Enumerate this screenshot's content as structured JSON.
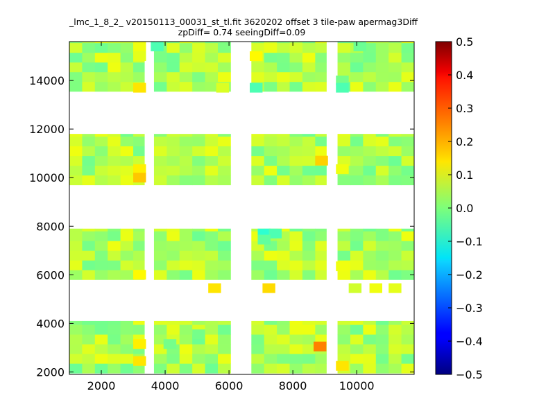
{
  "chart_data": {
    "type": "heatmap",
    "title": "_lmc_1_8_2_ v20150113_00031_st_tl.fit 3620202 offset 3 tile-paw apermag3Diff",
    "subtitle": "zpDiff= 0.74 seeingDiff=0.09",
    "xlabel": "",
    "ylabel": "",
    "xlim": [
      1000,
      11800
    ],
    "ylim": [
      1900,
      15600
    ],
    "x_ticks": [
      2000,
      4000,
      6000,
      8000,
      10000
    ],
    "y_ticks": [
      2000,
      4000,
      6000,
      8000,
      10000,
      12000,
      14000
    ],
    "colorbar": {
      "colormap": "jet",
      "range": [
        -0.5,
        0.5
      ],
      "ticks": [
        "0.5",
        "0.4",
        "0.3",
        "0.2",
        "0.1",
        "0.0",
        "−0.1",
        "−0.2",
        "−0.3",
        "−0.4",
        "−0.5"
      ]
    },
    "grid": false,
    "detector_columns_x": [
      [
        1000,
        3350
      ],
      [
        3650,
        6050
      ],
      [
        6700,
        9050
      ],
      [
        9400,
        11800
      ]
    ],
    "detector_rows_y": [
      [
        1950,
        4100
      ],
      [
        5800,
        7900
      ],
      [
        9700,
        11800
      ],
      [
        13550,
        15600
      ]
    ],
    "cell_size": 400,
    "background_value": 0.04,
    "notable_cells": [
      {
        "x": 3200,
        "y": 15400,
        "value": 0.11
      },
      {
        "x": 3200,
        "y": 15000,
        "value": 0.1
      },
      {
        "x": 3200,
        "y": 13700,
        "value": 0.15
      },
      {
        "x": 3750,
        "y": 15400,
        "value": -0.05
      },
      {
        "x": 5800,
        "y": 13700,
        "value": 0.09
      },
      {
        "x": 6850,
        "y": 15000,
        "value": 0.13
      },
      {
        "x": 6850,
        "y": 13700,
        "value": -0.05
      },
      {
        "x": 10100,
        "y": 15400,
        "value": -0.02
      },
      {
        "x": 9550,
        "y": 14000,
        "value": -0.01
      },
      {
        "x": 9550,
        "y": 13700,
        "value": -0.05
      },
      {
        "x": 3200,
        "y": 10350,
        "value": 0.14
      },
      {
        "x": 3200,
        "y": 10000,
        "value": 0.18
      },
      {
        "x": 8900,
        "y": 10700,
        "value": 0.17
      },
      {
        "x": 9550,
        "y": 10350,
        "value": 0.11
      },
      {
        "x": 7100,
        "y": 7700,
        "value": -0.08
      },
      {
        "x": 7450,
        "y": 7700,
        "value": -0.05
      },
      {
        "x": 7100,
        "y": 7450,
        "value": -0.03
      },
      {
        "x": 3200,
        "y": 6000,
        "value": 0.13
      },
      {
        "x": 9550,
        "y": 6350,
        "value": 0.11
      },
      {
        "x": 5550,
        "y": 5450,
        "value": 0.15
      },
      {
        "x": 7250,
        "y": 5450,
        "value": 0.16
      },
      {
        "x": 9950,
        "y": 5450,
        "value": 0.08
      },
      {
        "x": 10600,
        "y": 5450,
        "value": 0.11
      },
      {
        "x": 11200,
        "y": 5450,
        "value": 0.1
      },
      {
        "x": 3200,
        "y": 3150,
        "value": 0.14
      },
      {
        "x": 3200,
        "y": 2450,
        "value": 0.15
      },
      {
        "x": 8850,
        "y": 3050,
        "value": 0.25
      },
      {
        "x": 9550,
        "y": 2250,
        "value": 0.15
      },
      {
        "x": 5050,
        "y": 3550,
        "value": -0.01
      },
      {
        "x": 4150,
        "y": 3150,
        "value": -0.01
      }
    ]
  }
}
